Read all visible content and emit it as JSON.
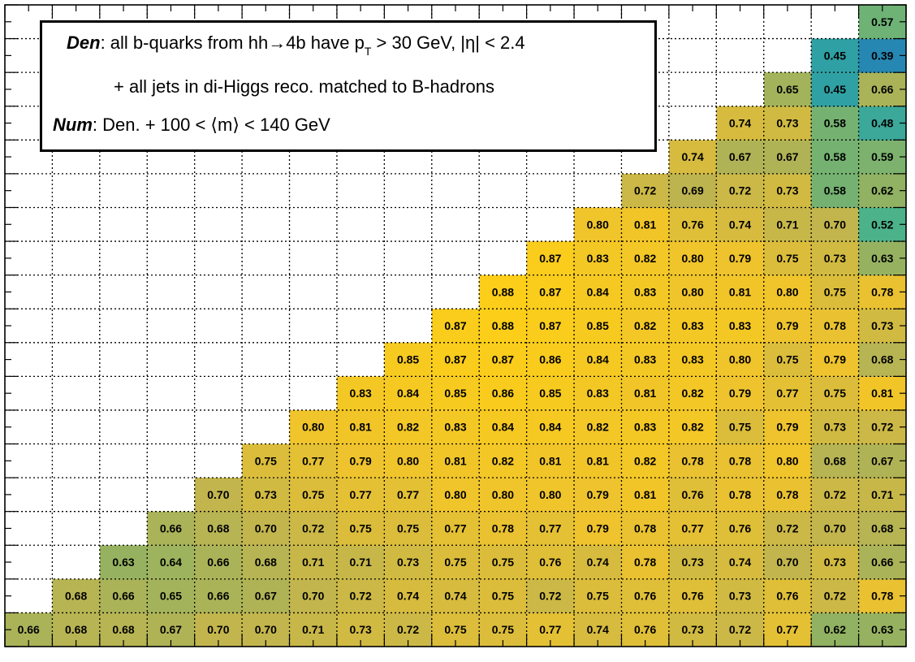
{
  "legend": {
    "den_key": "Den",
    "den_text_a": ": all b-quarks from hh→4b have p",
    "den_sub": "T",
    "den_text_b": " > 30 GeV, |η| < 2.4",
    "den_line2": "+ all jets in di-Higgs reco. matched to B-hadrons",
    "num_key": "Num",
    "num_text": ": Den. + 100 < ⟨m⟩ < 140 GeV"
  },
  "chart_data": {
    "type": "heatmap",
    "n_cols": 19,
    "n_rows": 19,
    "xlabel": "",
    "ylabel": "",
    "title": "",
    "grid": true,
    "colormap": "viridis-like (blue-green-yellow), low to high",
    "zlim": [
      0.35,
      0.9
    ],
    "rows": [
      [
        0.66,
        0.68,
        0.68,
        0.67,
        0.7,
        0.7,
        0.71,
        0.73,
        0.72,
        0.75,
        0.75,
        0.77,
        0.74,
        0.76,
        0.73,
        0.72,
        0.77,
        0.62,
        0.63
      ],
      [
        null,
        0.68,
        0.66,
        0.65,
        0.66,
        0.67,
        0.7,
        0.72,
        0.74,
        0.74,
        0.75,
        0.72,
        0.75,
        0.76,
        0.76,
        0.73,
        0.76,
        0.72,
        0.78
      ],
      [
        null,
        null,
        0.63,
        0.64,
        0.66,
        0.68,
        0.71,
        0.71,
        0.73,
        0.75,
        0.75,
        0.76,
        0.74,
        0.78,
        0.73,
        0.74,
        0.7,
        0.73,
        0.66
      ],
      [
        null,
        null,
        null,
        0.66,
        0.68,
        0.7,
        0.72,
        0.75,
        0.75,
        0.77,
        0.78,
        0.77,
        0.79,
        0.78,
        0.77,
        0.76,
        0.72,
        0.7,
        0.68
      ],
      [
        null,
        null,
        null,
        null,
        0.7,
        0.73,
        0.75,
        0.77,
        0.77,
        0.8,
        0.8,
        0.8,
        0.79,
        0.81,
        0.76,
        0.78,
        0.78,
        0.72,
        0.71
      ],
      [
        null,
        null,
        null,
        null,
        null,
        0.75,
        0.77,
        0.79,
        0.8,
        0.81,
        0.82,
        0.81,
        0.81,
        0.82,
        0.78,
        0.78,
        0.8,
        0.68,
        0.67
      ],
      [
        null,
        null,
        null,
        null,
        null,
        null,
        0.8,
        0.81,
        0.82,
        0.83,
        0.84,
        0.84,
        0.82,
        0.83,
        0.82,
        0.75,
        0.79,
        0.73,
        0.72
      ],
      [
        null,
        null,
        null,
        null,
        null,
        null,
        null,
        0.83,
        0.84,
        0.85,
        0.86,
        0.85,
        0.83,
        0.81,
        0.82,
        0.79,
        0.77,
        0.75,
        0.81
      ],
      [
        null,
        null,
        null,
        null,
        null,
        null,
        null,
        null,
        0.85,
        0.87,
        0.87,
        0.86,
        0.84,
        0.83,
        0.83,
        0.8,
        0.75,
        0.79,
        0.68
      ],
      [
        null,
        null,
        null,
        null,
        null,
        null,
        null,
        null,
        null,
        0.87,
        0.88,
        0.87,
        0.85,
        0.82,
        0.83,
        0.83,
        0.79,
        0.78,
        0.73
      ],
      [
        null,
        null,
        null,
        null,
        null,
        null,
        null,
        null,
        null,
        null,
        0.88,
        0.87,
        0.84,
        0.83,
        0.8,
        0.81,
        0.8,
        0.75,
        0.78
      ],
      [
        null,
        null,
        null,
        null,
        null,
        null,
        null,
        null,
        null,
        null,
        null,
        0.87,
        0.83,
        0.82,
        0.8,
        0.79,
        0.75,
        0.73,
        0.63
      ],
      [
        null,
        null,
        null,
        null,
        null,
        null,
        null,
        null,
        null,
        null,
        null,
        null,
        0.8,
        0.81,
        0.76,
        0.74,
        0.71,
        0.7,
        0.52
      ],
      [
        null,
        null,
        null,
        null,
        null,
        null,
        null,
        null,
        null,
        null,
        null,
        null,
        null,
        0.72,
        0.69,
        0.72,
        0.73,
        0.58,
        0.62
      ],
      [
        null,
        null,
        null,
        null,
        null,
        null,
        null,
        null,
        null,
        null,
        null,
        null,
        null,
        null,
        0.74,
        0.67,
        0.67,
        0.58,
        0.59
      ],
      [
        null,
        null,
        null,
        null,
        null,
        null,
        null,
        null,
        null,
        null,
        null,
        null,
        null,
        null,
        null,
        0.74,
        0.73,
        0.58,
        0.48
      ],
      [
        null,
        null,
        null,
        null,
        null,
        null,
        null,
        null,
        null,
        null,
        null,
        null,
        null,
        null,
        null,
        null,
        0.65,
        0.45,
        0.66
      ],
      [
        null,
        null,
        null,
        null,
        null,
        null,
        null,
        null,
        null,
        null,
        null,
        null,
        null,
        null,
        null,
        null,
        null,
        0.45,
        0.39
      ],
      [
        null,
        null,
        null,
        null,
        null,
        null,
        null,
        null,
        null,
        null,
        null,
        null,
        null,
        null,
        null,
        null,
        null,
        null,
        0.57
      ]
    ]
  }
}
